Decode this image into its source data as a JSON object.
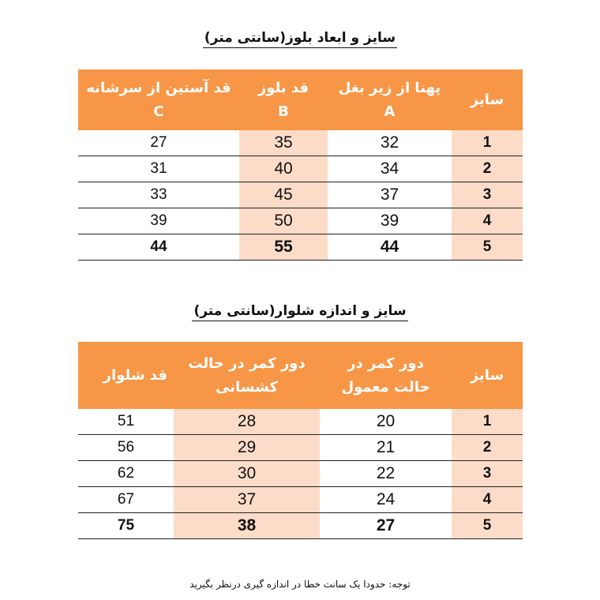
{
  "blouse": {
    "title": "سایز و ابعاد بلوز(سانتی متر)",
    "headers": [
      {
        "label": "سایز",
        "sub": ""
      },
      {
        "label": "پهنا از زیر بغل",
        "sub": "A"
      },
      {
        "label": "قد بلوز",
        "sub": "B"
      },
      {
        "label": "قد آستین از سرشانه",
        "sub": "C"
      }
    ],
    "rows": [
      [
        "1",
        "32",
        "35",
        "27"
      ],
      [
        "2",
        "34",
        "40",
        "31"
      ],
      [
        "3",
        "37",
        "45",
        "33"
      ],
      [
        "4",
        "39",
        "50",
        "39"
      ],
      [
        "5",
        "44",
        "55",
        "44"
      ]
    ]
  },
  "pants": {
    "title": "سایز و اندازه شلوار(سانتی متر)",
    "headers": [
      {
        "label": "سایز",
        "sub": ""
      },
      {
        "label": "دور کمر در",
        "sub": "حالت معمول"
      },
      {
        "label": "دور کمر در حالت",
        "sub": "کشسانی"
      },
      {
        "label": "قد شلوار",
        "sub": ""
      }
    ],
    "rows": [
      [
        "1",
        "20",
        "28",
        "51"
      ],
      [
        "2",
        "21",
        "29",
        "56"
      ],
      [
        "3",
        "22",
        "30",
        "62"
      ],
      [
        "4",
        "24",
        "37",
        "67"
      ],
      [
        "5",
        "27",
        "38",
        "75"
      ]
    ]
  },
  "note": "توجه: حدودا یک سانت خطا در اندازه گیری درنظر بگیرید",
  "colors": {
    "header": "#f79646",
    "highlight": "#fcdcc8"
  }
}
